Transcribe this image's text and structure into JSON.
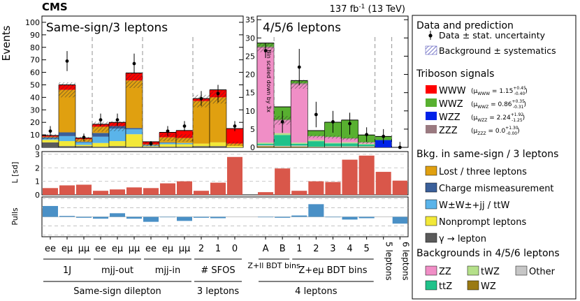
{
  "header": {
    "experiment": "CMS",
    "luminosity_prefix": "137 fb",
    "luminosity_exp": "-1",
    "luminosity_suffix": " (13 TeV)"
  },
  "colors": {
    "lost": "#e0a010",
    "chargemis": "#3a5f9a",
    "wwjj": "#5ab4ea",
    "nonprompt": "#f2e838",
    "gamma": "#5a5a5a",
    "zz": "#f08ec6",
    "ttz": "#20c28a",
    "twz": "#b5e08a",
    "wz": "#9a7a14",
    "other": "#c6c6c6",
    "www": "#ff0000",
    "wwz": "#58b030",
    "wzz": "#0022e8",
    "zzz": "#9a7a80",
    "pull_bar": "#4a90c6",
    "l_bar": "#d9574a"
  },
  "chart_data": {
    "type": "bar",
    "stacked": true,
    "panels": [
      {
        "name": "left",
        "title": "Same-sign/3 leptons",
        "ylim": [
          0,
          105
        ],
        "yticks": [
          0,
          10,
          20,
          30,
          40,
          50,
          60,
          70,
          80,
          90,
          100
        ],
        "ylabel": "Events"
      },
      {
        "name": "right",
        "title": "4/5/6 leptons",
        "ylim": [
          0,
          36
        ],
        "yticks": [
          0,
          5,
          10,
          15,
          20,
          25,
          30,
          35
        ],
        "annotation": "Bin scaled down by 3x"
      }
    ],
    "categories": [
      "ee",
      "eμ",
      "μμ",
      "ee",
      "eμ",
      "μμ",
      "ee",
      "eμ",
      "μμ",
      "2",
      "1",
      "0",
      "A",
      "B",
      "1",
      "2",
      "3",
      "4",
      "5",
      "5 leptons",
      "6 leptons"
    ],
    "bin_panel": [
      0,
      0,
      0,
      0,
      0,
      0,
      0,
      0,
      0,
      0,
      0,
      0,
      1,
      1,
      1,
      1,
      1,
      1,
      1,
      1,
      1
    ],
    "group_labels": [
      {
        "label": "1J",
        "from": 0,
        "to": 2,
        "row": 1
      },
      {
        "label": "mjj-out",
        "from": 3,
        "to": 5,
        "row": 1
      },
      {
        "label": "mjj-in",
        "from": 6,
        "to": 8,
        "row": 1
      },
      {
        "label": "# SFOS",
        "from": 9,
        "to": 11,
        "row": 1
      },
      {
        "label": "Z+ll BDT bins",
        "from": 12,
        "to": 13,
        "row": 1
      },
      {
        "label": "Z+eμ BDT bins",
        "from": 14,
        "to": 18,
        "row": 1
      },
      {
        "label": "Same-sign dilepton",
        "from": 0,
        "to": 8,
        "row": 2
      },
      {
        "label": "3 leptons",
        "from": 9,
        "to": 11,
        "row": 2
      },
      {
        "label": "4 leptons",
        "from": 12,
        "to": 18,
        "row": 2
      }
    ],
    "series": [
      {
        "key": "gamma",
        "values": [
          4,
          1,
          1,
          0.5,
          1,
          0.5,
          0.5,
          0.5,
          0.5,
          1,
          1,
          0,
          0,
          0,
          0,
          0,
          0,
          0,
          0,
          0,
          0
        ]
      },
      {
        "key": "nonprompt",
        "values": [
          2,
          4,
          1,
          3,
          4,
          10,
          0.5,
          2,
          2,
          2,
          3,
          1,
          0,
          0,
          0,
          0,
          0,
          0,
          0,
          0,
          0
        ]
      },
      {
        "key": "wwjj",
        "values": [
          1,
          4,
          2,
          5,
          10,
          4,
          0.5,
          1,
          1,
          0,
          0,
          0,
          0,
          0,
          0,
          0,
          0,
          0,
          0,
          0,
          0
        ]
      },
      {
        "key": "chargemis",
        "values": [
          1,
          3,
          0.5,
          3,
          2,
          1,
          0.5,
          0.5,
          0,
          0,
          0,
          0,
          0,
          0,
          0,
          0,
          0,
          0,
          0,
          0,
          0
        ]
      },
      {
        "key": "lost",
        "values": [
          0.5,
          34,
          2,
          5,
          0,
          38,
          0.5,
          4,
          4,
          34,
          36,
          2,
          0,
          0,
          0,
          0,
          0,
          0,
          0,
          0,
          0
        ]
      },
      {
        "key": "wz",
        "values": [
          0,
          0,
          0,
          0,
          0,
          0,
          0,
          0,
          0,
          0,
          0,
          0,
          0.3,
          0.2,
          0.2,
          0.1,
          0.1,
          0.1,
          0.1,
          0,
          0
        ]
      },
      {
        "key": "other",
        "values": [
          0,
          0,
          0,
          0,
          0,
          0,
          0,
          0,
          0,
          0,
          0,
          0,
          0.3,
          0.2,
          0.3,
          0.1,
          0.2,
          0.2,
          0.2,
          0,
          0
        ]
      },
      {
        "key": "ttz",
        "values": [
          0,
          0,
          0,
          0,
          0,
          0,
          0,
          0,
          0,
          0,
          0,
          0,
          0.4,
          3,
          0.5,
          1.5,
          0.8,
          0.8,
          0.5,
          0,
          0
        ]
      },
      {
        "key": "twz",
        "values": [
          0,
          0,
          0,
          0,
          0,
          0,
          0,
          0,
          0,
          0,
          0,
          0,
          0.3,
          0.5,
          0.3,
          0.3,
          0.2,
          0.3,
          0.2,
          0,
          0
        ]
      },
      {
        "key": "zz",
        "values": [
          0,
          0,
          0,
          0,
          0,
          0,
          0,
          0,
          0,
          0,
          0,
          0,
          26,
          3.5,
          16,
          1,
          1.5,
          1,
          0.3,
          0,
          0
        ]
      },
      {
        "key": "zzz",
        "values": [
          0,
          0,
          0,
          0,
          0,
          0,
          0,
          0,
          0,
          0,
          0,
          0,
          0.3,
          0.2,
          0.3,
          0.1,
          0.1,
          0.1,
          0.1,
          0,
          0
        ]
      },
      {
        "key": "wzz",
        "values": [
          0,
          0,
          0,
          0,
          0,
          0,
          0,
          0,
          0,
          0,
          0,
          0,
          0,
          0,
          0,
          0,
          0,
          0,
          0,
          2,
          0
        ]
      },
      {
        "key": "wwz",
        "values": [
          0,
          0,
          0,
          0,
          0,
          0,
          0,
          0,
          0,
          0,
          0,
          0,
          1,
          3.5,
          0.7,
          1.5,
          4,
          5,
          2,
          1,
          0
        ]
      },
      {
        "key": "www",
        "values": [
          1,
          4,
          1,
          2,
          3,
          6,
          2,
          4,
          6,
          2,
          6,
          12,
          0,
          0,
          0,
          0,
          0,
          0,
          0,
          0,
          0
        ]
      }
    ],
    "background_syst": [
      2,
      6,
      2,
      4,
      4,
      6,
      1.5,
      3,
      3,
      5,
      5,
      1.5,
      1.2,
      1.2,
      1.2,
      0.4,
      0.4,
      0.4,
      0.3,
      0.3,
      0
    ],
    "data": {
      "values": [
        13,
        69,
        8,
        22,
        22,
        67,
        3,
        13,
        17,
        39,
        43,
        17,
        26.5,
        7,
        22,
        9,
        7,
        6.5,
        3.5,
        3,
        0
      ],
      "errors": [
        4,
        8,
        3,
        5,
        5,
        8,
        2,
        4,
        4,
        6,
        7,
        4,
        2,
        3,
        5,
        3.5,
        3,
        3,
        2,
        2,
        1.5
      ]
    },
    "likelihood": {
      "ylabel": "L [sd]",
      "ylim": [
        0,
        3.2
      ],
      "yticks": [
        0,
        1,
        2,
        3
      ],
      "values": [
        0.5,
        0.7,
        0.75,
        0.3,
        0.4,
        0.55,
        0.5,
        0.85,
        1.0,
        0.3,
        0.9,
        2.8,
        0.2,
        1.95,
        0.3,
        1.0,
        0.95,
        2.6,
        2.9,
        1.7,
        1.05
      ]
    },
    "pulls": {
      "ylabel": "Pulls",
      "ylim": [
        -2.2,
        2.2
      ],
      "yticks": [
        -2,
        -1,
        0,
        1,
        2
      ],
      "values": [
        1.2,
        0.1,
        -0.1,
        -0.2,
        0.4,
        -0.2,
        -0.55,
        -0.05,
        -0.45,
        -0.1,
        -0.15,
        0,
        -0.05,
        -0.1,
        0.15,
        1.4,
        -0.05,
        -0.3,
        -0.15,
        0,
        -0.75
      ]
    }
  },
  "legend": {
    "section_data": "Data and prediction",
    "data_entry": "Data ± stat. uncertainty",
    "bkg_entry": "Background ± systematics",
    "section_signals": "Triboson signals",
    "signals": [
      {
        "key": "www",
        "name": "WWW",
        "mu_sub": "WWW",
        "mu_val": "1.15",
        "mu_up": "+0.45",
        "mu_dn": "-0.40"
      },
      {
        "key": "wwz",
        "name": "WWZ",
        "mu_sub": "WWZ",
        "mu_val": "0.86",
        "mu_up": "+0.35",
        "mu_dn": "-0.31"
      },
      {
        "key": "wzz",
        "name": "WZZ",
        "mu_sub": "WZZ",
        "mu_val": "2.24",
        "mu_up": "+1.92",
        "mu_dn": "-1.25"
      },
      {
        "key": "zzz",
        "name": "ZZZ",
        "mu_sub": "ZZZ",
        "mu_val": "0.0",
        "mu_up": "+1.30",
        "mu_dn": "-0.00"
      }
    ],
    "section_ss": "Bkg. in same-sign / 3 leptons",
    "ss_backgrounds": [
      {
        "key": "lost",
        "name": "Lost / three leptons"
      },
      {
        "key": "chargemis",
        "name": "Charge mismeasurement"
      },
      {
        "key": "wwjj",
        "name": "W±W±+jj / ttW"
      },
      {
        "key": "nonprompt",
        "name": "Nonprompt leptons"
      },
      {
        "key": "gamma",
        "name": "γ → lepton"
      }
    ],
    "section_4l": "Backgrounds in 4/5/6 leptons",
    "fl_backgrounds": [
      {
        "key": "zz",
        "name": "ZZ"
      },
      {
        "key": "twz",
        "name": "tWZ"
      },
      {
        "key": "other",
        "name": "Other"
      },
      {
        "key": "ttz",
        "name": "ttZ"
      },
      {
        "key": "wz",
        "name": "WZ"
      }
    ]
  }
}
